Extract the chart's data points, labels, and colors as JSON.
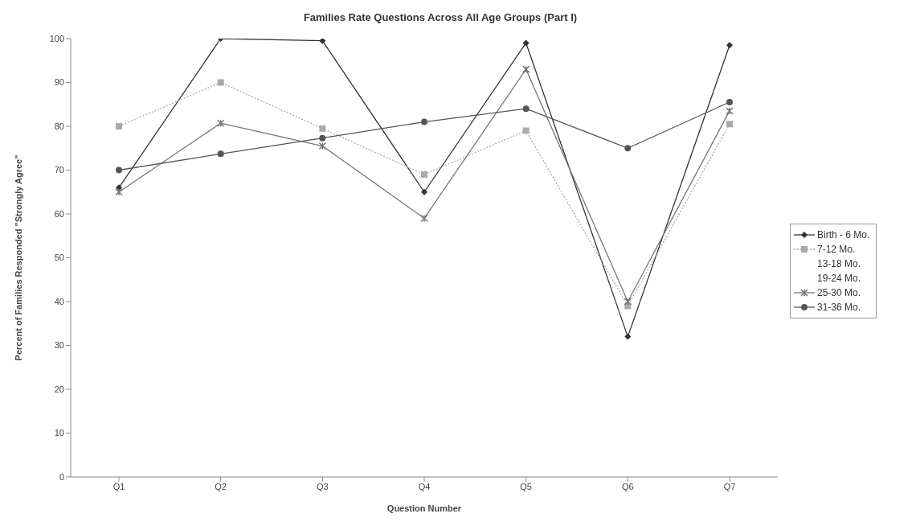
{
  "chart_data": {
    "type": "line",
    "title": "Families Rate Questions Across All Age Groups (Part I)",
    "xlabel": "Question Number",
    "ylabel": "Percent of Families Responded \"Strongly Agree\"",
    "categories": [
      "Q1",
      "Q2",
      "Q3",
      "Q4",
      "Q5",
      "Q6",
      "Q7"
    ],
    "ylim": [
      0,
      100
    ],
    "yticks": [
      0,
      10,
      20,
      30,
      40,
      50,
      60,
      70,
      80,
      90,
      100
    ],
    "grid": false,
    "legend": "right",
    "series": [
      {
        "name": "Birth - 6 Mo.",
        "color": "#333333",
        "marker": "diamond",
        "line_style": "solid",
        "values": [
          66,
          100,
          99.5,
          65,
          99,
          32,
          98.5
        ]
      },
      {
        "name": "7-12 Mo.",
        "color": "#aaaaaa",
        "marker": "square",
        "line_style": "dotted",
        "values": [
          80,
          90,
          79.5,
          69,
          79,
          39,
          80.5
        ]
      },
      {
        "name": "13-18 Mo.",
        "marker": "none",
        "values": [
          null,
          null,
          null,
          null,
          null,
          null,
          null
        ]
      },
      {
        "name": "19-24 Mo.",
        "marker": "none",
        "values": [
          null,
          null,
          null,
          null,
          null,
          null,
          null
        ]
      },
      {
        "name": "25-30 Mo.",
        "color": "#777777",
        "marker": "cross",
        "line_style": "solid",
        "values": [
          65,
          80.7,
          75.5,
          59,
          93,
          40,
          83.5
        ]
      },
      {
        "name": "31-36 Mo.",
        "color": "#555555",
        "marker": "circle",
        "line_style": "solid",
        "values": [
          70,
          73.7,
          77.3,
          81,
          84,
          75,
          85.5
        ]
      }
    ]
  }
}
